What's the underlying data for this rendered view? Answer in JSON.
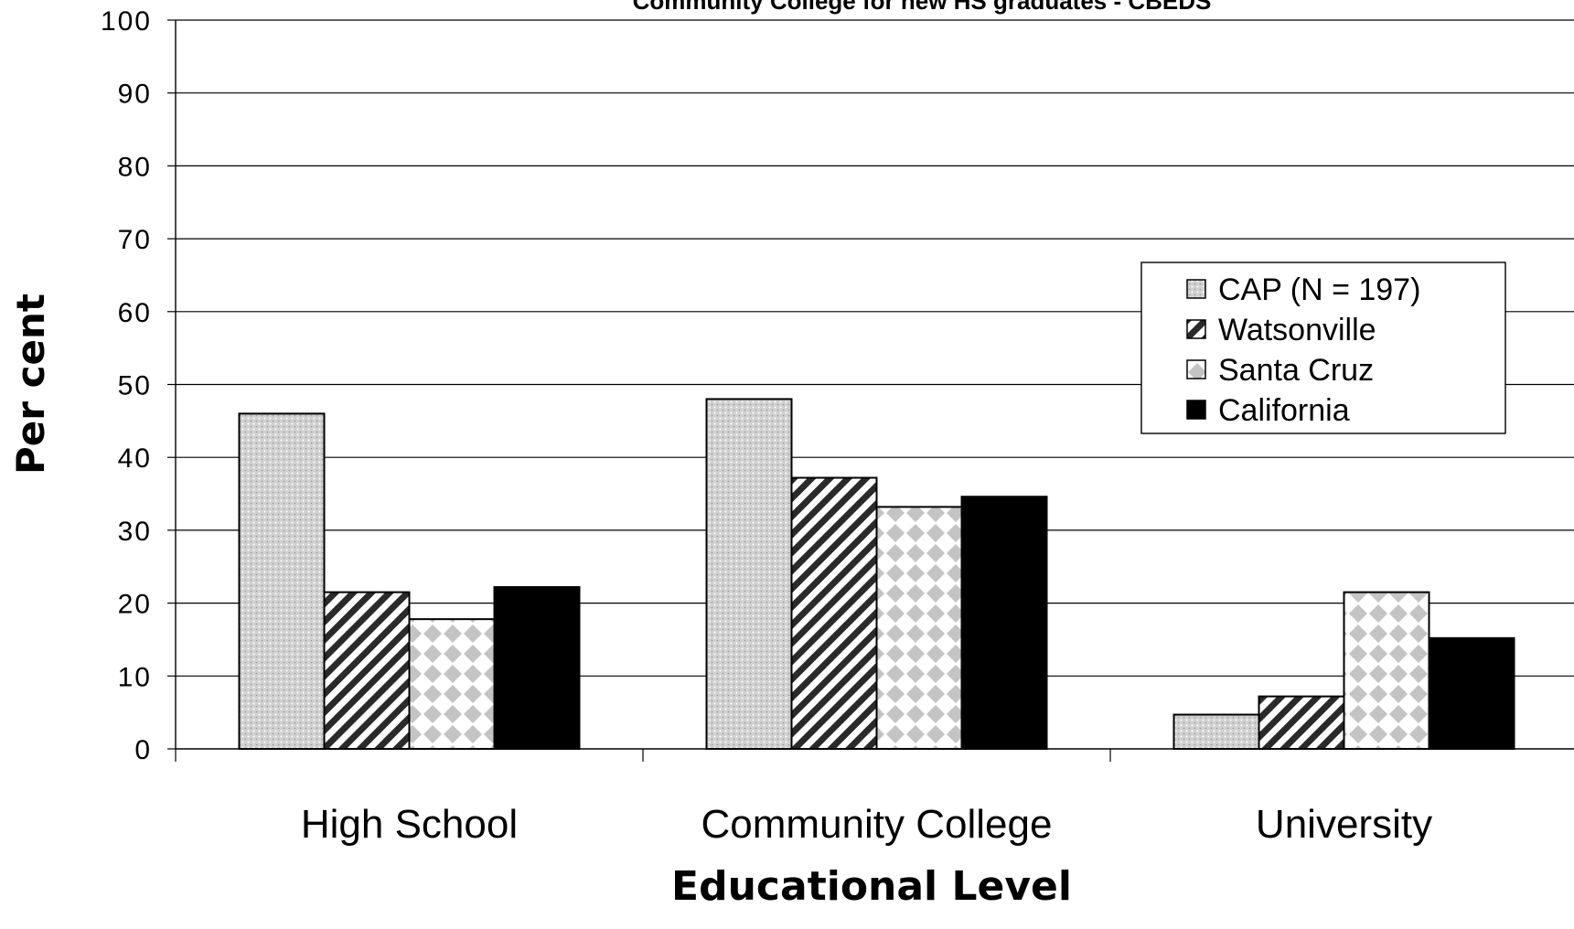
{
  "chart_data": {
    "type": "bar",
    "title": "Community College for new HS graduates - CBEDS",
    "xlabel": "Educational Level",
    "ylabel": "Per cent",
    "ylim": [
      0,
      100
    ],
    "yticks": [
      0,
      10,
      20,
      30,
      40,
      50,
      60,
      70,
      80,
      90,
      100
    ],
    "categories": [
      "High School",
      "Community College",
      "University"
    ],
    "series": [
      {
        "name": "CAP (N = 197)",
        "values": [
          46,
          48,
          4.7
        ],
        "fill": "dots"
      },
      {
        "name": "Watsonville",
        "values": [
          21.5,
          37.2,
          7.2
        ],
        "fill": "stripes"
      },
      {
        "name": "Santa Cruz",
        "values": [
          17.8,
          33.2,
          21.5
        ],
        "fill": "diamonds"
      },
      {
        "name": "California",
        "values": [
          22.2,
          34.6,
          15.2
        ],
        "fill": "solid"
      }
    ],
    "grid": true,
    "legend_position": "right"
  }
}
